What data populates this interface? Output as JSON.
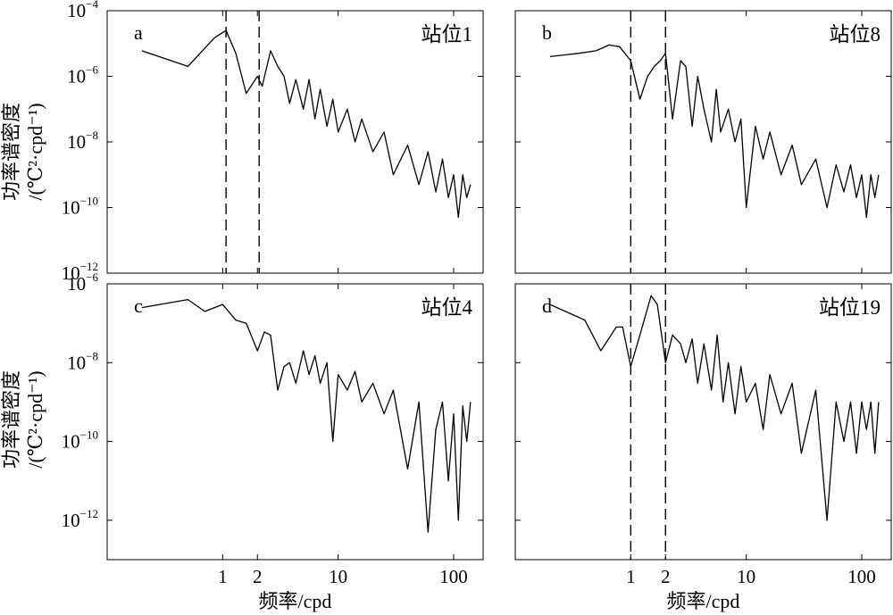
{
  "ylabel_line1": "功率谱密度",
  "ylabel_line2": "/(℃²·cpd⁻¹)",
  "xlabel": "频率/cpd",
  "chart_data": [
    {
      "type": "line",
      "panel": "a",
      "title": "站位1",
      "xscale": "log",
      "yscale": "log",
      "xlim": [
        0.1,
        180
      ],
      "ylim": [
        1e-12,
        0.0001
      ],
      "xticks": [
        1,
        2,
        10,
        100
      ],
      "yticks": [
        1e-12,
        1e-10,
        1e-08,
        1e-06,
        0.0001
      ],
      "vlines": [
        1.07,
        2.07
      ],
      "x_tick_labels_shown": false,
      "xlabel_shown": false,
      "series": [
        {
          "x": [
            0.2,
            0.5,
            0.85,
            1.07,
            1.3,
            1.6,
            2.0,
            2.2,
            2.6,
            3.0,
            3.4,
            3.8,
            4.3,
            5.0,
            5.6,
            6.3,
            7.0,
            8.0,
            9.0,
            10,
            12,
            14,
            16,
            20,
            25,
            30,
            40,
            50,
            60,
            70,
            80,
            90,
            100,
            110,
            120,
            130,
            140
          ],
          "y": [
            6e-06,
            2e-06,
            1.5e-05,
            2.5e-05,
            5e-06,
            3e-07,
            1e-06,
            5e-07,
            6e-06,
            2e-06,
            1e-06,
            1.5e-07,
            8e-07,
            1e-07,
            8e-07,
            5e-08,
            4e-07,
            3e-08,
            2e-07,
            2e-08,
            1e-07,
            1e-08,
            5e-08,
            5e-09,
            2e-08,
            1e-09,
            8e-09,
            5e-10,
            5e-09,
            3e-10,
            3e-09,
            2e-10,
            1e-09,
            5e-11,
            1e-09,
            2e-10,
            5e-10
          ]
        }
      ]
    },
    {
      "type": "line",
      "panel": "b",
      "title": "站位8",
      "xscale": "log",
      "yscale": "log",
      "xlim": [
        0.1,
        180
      ],
      "ylim": [
        1e-12,
        0.0001
      ],
      "xticks": [
        1,
        2,
        10,
        100
      ],
      "yticks": [
        1e-12,
        1e-10,
        1e-08,
        1e-06,
        0.0001
      ],
      "vlines": [
        1.0,
        2.0
      ],
      "x_tick_labels_shown": false,
      "xlabel_shown": false,
      "y_tick_labels_shown": false,
      "series": [
        {
          "x": [
            0.2,
            0.35,
            0.5,
            0.65,
            0.8,
            1.0,
            1.2,
            1.4,
            1.6,
            1.8,
            2.0,
            2.3,
            2.7,
            3.0,
            3.4,
            3.8,
            4.3,
            5.0,
            5.5,
            6.0,
            7.0,
            8.0,
            9.0,
            10,
            12,
            14,
            16,
            20,
            25,
            30,
            40,
            50,
            60,
            70,
            80,
            90,
            100,
            110,
            120,
            130,
            140
          ],
          "y": [
            4e-06,
            5e-06,
            6e-06,
            9e-06,
            8e-06,
            3e-06,
            2e-07,
            1e-06,
            2e-06,
            3e-06,
            5e-06,
            5e-08,
            3e-06,
            2e-06,
            3e-08,
            1e-06,
            1e-07,
            1e-08,
            4e-07,
            2e-08,
            1e-07,
            1e-08,
            5e-08,
            1e-10,
            3e-08,
            3e-09,
            2e-08,
            1e-09,
            8e-09,
            5e-10,
            3e-09,
            1e-10,
            2e-09,
            3e-10,
            2e-09,
            2e-10,
            1e-09,
            5e-11,
            1e-09,
            2e-10,
            1e-09
          ]
        }
      ]
    },
    {
      "type": "line",
      "panel": "c",
      "title": "站位4",
      "xscale": "log",
      "yscale": "log",
      "xlim": [
        0.1,
        180
      ],
      "ylim": [
        1e-13,
        1e-06
      ],
      "xticks": [
        1,
        2,
        10,
        100
      ],
      "yticks": [
        1e-12,
        1e-10,
        1e-08,
        1e-06
      ],
      "vlines": [],
      "x_tick_labels_shown": true,
      "xlabel_shown": true,
      "series": [
        {
          "x": [
            0.2,
            0.5,
            0.7,
            1.0,
            1.3,
            1.6,
            2.0,
            2.3,
            2.6,
            3.0,
            3.4,
            3.8,
            4.3,
            5.0,
            5.6,
            6.3,
            7.0,
            8.0,
            9.0,
            10,
            12,
            14,
            16,
            20,
            25,
            30,
            40,
            50,
            60,
            70,
            80,
            90,
            100,
            110,
            120,
            130,
            140
          ],
          "y": [
            2.5e-07,
            4e-07,
            2e-07,
            3e-07,
            1.2e-07,
            1e-07,
            2e-08,
            6e-08,
            5e-08,
            2e-09,
            8e-09,
            1e-08,
            3e-09,
            2e-08,
            5e-09,
            1.5e-08,
            3e-09,
            1e-08,
            1e-10,
            5e-09,
            2e-09,
            6e-09,
            1e-09,
            3e-09,
            5e-10,
            2e-09,
            2e-11,
            1e-09,
            5e-13,
            2e-10,
            1e-09,
            1e-11,
            5e-10,
            1e-12,
            8e-10,
            1e-10,
            1e-09
          ]
        }
      ]
    },
    {
      "type": "line",
      "panel": "d",
      "title": "站位19",
      "xscale": "log",
      "yscale": "log",
      "xlim": [
        0.1,
        180
      ],
      "ylim": [
        1e-13,
        1e-06
      ],
      "xticks": [
        1,
        2,
        10,
        100
      ],
      "yticks": [
        1e-12,
        1e-10,
        1e-08,
        1e-06
      ],
      "vlines": [
        1.0,
        2.0
      ],
      "x_tick_labels_shown": true,
      "xlabel_shown": true,
      "y_tick_labels_shown": false,
      "series": [
        {
          "x": [
            0.2,
            0.4,
            0.55,
            0.75,
            0.85,
            1.0,
            1.2,
            1.5,
            1.7,
            1.85,
            2.0,
            2.3,
            2.7,
            3.0,
            3.4,
            3.8,
            4.3,
            5.0,
            5.6,
            6.3,
            7.0,
            8.0,
            9.0,
            10,
            12,
            14,
            16,
            20,
            25,
            30,
            40,
            50,
            60,
            70,
            80,
            90,
            100,
            110,
            120,
            130,
            140
          ],
          "y": [
            3e-07,
            1.2e-07,
            2e-08,
            8e-08,
            8e-08,
            8e-09,
            5e-08,
            5e-07,
            3e-07,
            5e-08,
            1e-08,
            5e-08,
            3e-08,
            1e-08,
            4e-08,
            3e-09,
            3e-08,
            2e-09,
            5e-08,
            1e-09,
            1e-08,
            5e-10,
            8e-09,
            1e-09,
            3e-09,
            2e-10,
            5e-09,
            5e-10,
            3e-09,
            5e-11,
            2e-09,
            1e-12,
            1e-09,
            1e-10,
            1e-09,
            5e-11,
            1e-09,
            2e-10,
            1e-09,
            5e-11,
            1e-09
          ]
        }
      ]
    }
  ]
}
